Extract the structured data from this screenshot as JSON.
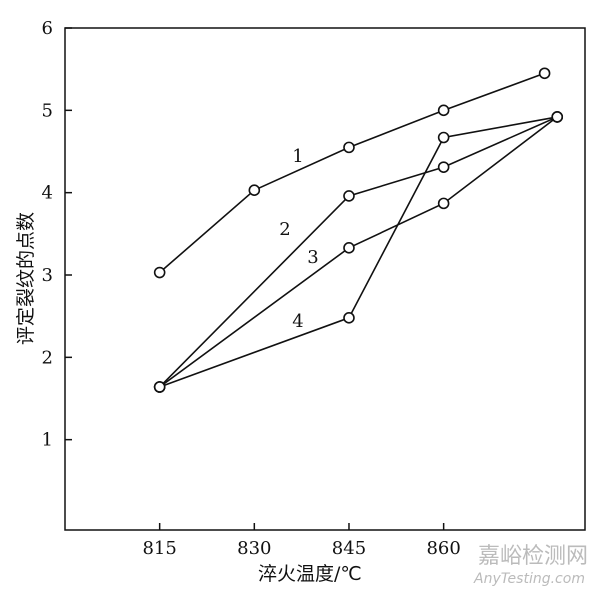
{
  "chart_data": {
    "type": "line",
    "xlabel": "淬火温度/℃",
    "ylabel": "评定裂纹的点数",
    "xlim": [
      800,
      882.4
    ],
    "ylim": [
      0,
      6
    ],
    "xticks": [
      815,
      830,
      845,
      860
    ],
    "yticks": [
      1,
      2,
      3,
      4,
      5,
      6
    ],
    "color": "#111111",
    "series": [
      {
        "name": "1",
        "x": [
          815,
          830,
          845,
          860,
          876
        ],
        "values": [
          3.03,
          4.03,
          4.55,
          5.0,
          5.45
        ]
      },
      {
        "name": "2",
        "x": [
          815,
          845,
          860,
          878
        ],
        "values": [
          1.64,
          3.96,
          4.31,
          4.92
        ]
      },
      {
        "name": "3",
        "x": [
          815,
          845,
          860,
          878
        ],
        "values": [
          1.64,
          3.33,
          3.87,
          4.92
        ]
      },
      {
        "name": "4",
        "x": [
          815,
          845,
          860,
          878
        ],
        "values": [
          1.64,
          2.48,
          4.67,
          4.92
        ]
      }
    ],
    "watermark": [
      "嘉峪检测网",
      "AnyTesting.com"
    ]
  }
}
